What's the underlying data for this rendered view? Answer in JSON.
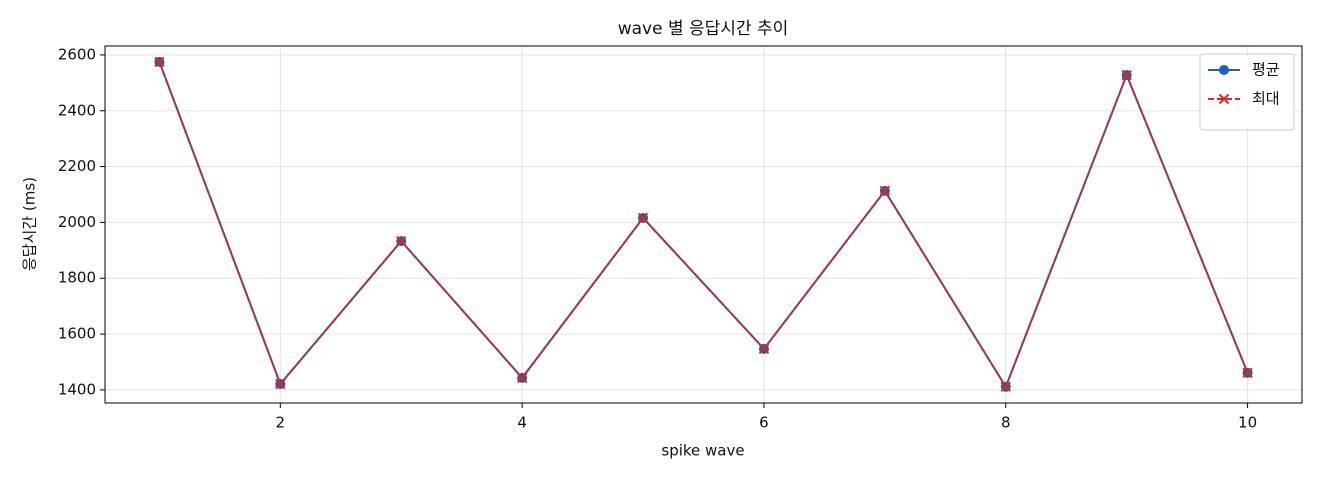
{
  "chart_data": {
    "type": "line",
    "title": "wave 별 응답시간 추이",
    "x_label": "spike wave",
    "y_label": "응답시간 (ms)",
    "x": [
      1,
      2,
      3,
      4,
      5,
      6,
      7,
      8,
      9,
      10
    ],
    "series": [
      {
        "name": "평균",
        "color": "#1f5fb4",
        "marker": "o",
        "dash": false,
        "values": [
          2575,
          1421,
          1933,
          1443,
          2016,
          1547,
          2113,
          1411,
          2528,
          1461
        ]
      },
      {
        "name": "최대",
        "color": "#d62728",
        "marker": "x",
        "dash": true,
        "values": [
          2575,
          1421,
          1933,
          1443,
          2016,
          1547,
          2113,
          1411,
          2528,
          1461
        ]
      }
    ],
    "xlim": [
      0.55,
      10.45
    ],
    "xticks": [
      2,
      4,
      6,
      8,
      10
    ],
    "ylim": [
      1353,
      2632
    ],
    "yticks": [
      1400,
      1600,
      1800,
      2000,
      2200,
      2400,
      2600
    ],
    "grid": true,
    "legend": "upper right"
  }
}
